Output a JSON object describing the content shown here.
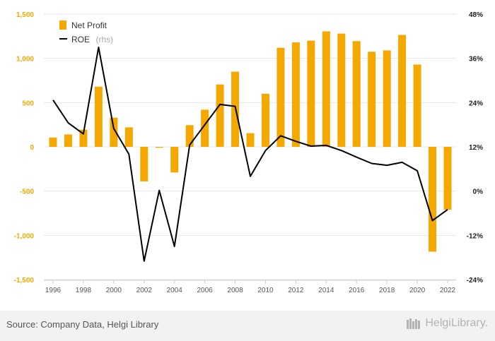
{
  "chart_data": {
    "type": "bar+line",
    "categories": [
      "1996",
      "1997",
      "1998",
      "1999",
      "2000",
      "2001",
      "2002",
      "2003",
      "2004",
      "2005",
      "2006",
      "2007",
      "2008",
      "2009",
      "2010",
      "2011",
      "2012",
      "2013",
      "2014",
      "2015",
      "2016",
      "2017",
      "2018",
      "2019",
      "2020",
      "2021",
      "2022"
    ],
    "series": [
      {
        "name": "Net Profit",
        "type": "bar",
        "axis": "left",
        "color": "#f5a800",
        "values": [
          105,
          140,
          195,
          680,
          330,
          220,
          -390,
          -10,
          -290,
          245,
          420,
          705,
          850,
          155,
          600,
          1120,
          1180,
          1200,
          1305,
          1280,
          1195,
          1075,
          1090,
          1265,
          930,
          -1185,
          -710
        ]
      },
      {
        "name": "ROE",
        "name_suffix": "(rhs)",
        "type": "line",
        "axis": "right",
        "color": "#000000",
        "values": [
          24.7,
          18.5,
          15.5,
          39.0,
          17.0,
          10.0,
          -19.0,
          0.2,
          -15.0,
          12.5,
          18.0,
          23.5,
          23.0,
          4.0,
          11.0,
          15.0,
          13.5,
          12.2,
          12.4,
          11.0,
          9.2,
          7.5,
          7.0,
          7.8,
          5.5,
          -8.0,
          -5.0
        ]
      }
    ],
    "left_axis": {
      "min": -1500,
      "max": 1500,
      "ticks": [
        -1500,
        -1000,
        -500,
        0,
        500,
        1000,
        1500
      ],
      "tick_labels": [
        "-1,500",
        "-1,000",
        "-500",
        "0",
        "500",
        "1,000",
        "1,500"
      ]
    },
    "right_axis": {
      "min": -24,
      "max": 48,
      "ticks": [
        -24,
        -12,
        0,
        12,
        24,
        36,
        48
      ],
      "tick_labels": [
        "-24%",
        "-12%",
        "0%",
        "12%",
        "24%",
        "36%",
        "48%"
      ]
    },
    "x_tick_labels": [
      "1996",
      "1998",
      "2000",
      "2002",
      "2004",
      "2006",
      "2008",
      "2010",
      "2012",
      "2014",
      "2016",
      "2018",
      "2020",
      "2022"
    ],
    "grid": true,
    "legend": "top-left",
    "title": "",
    "xlabel": "",
    "ylabel": ""
  },
  "legend": {
    "net_profit": "Net Profit",
    "roe": "ROE",
    "roe_suffix": "(rhs)"
  },
  "footer": {
    "source": "Source: Company Data, Helgi Library",
    "brand": "HelgiLibrary."
  },
  "colors": {
    "bar": "#f5a800",
    "line": "#000000",
    "grid": "#e6e6e6",
    "footer_bg": "#f2f2f2"
  }
}
